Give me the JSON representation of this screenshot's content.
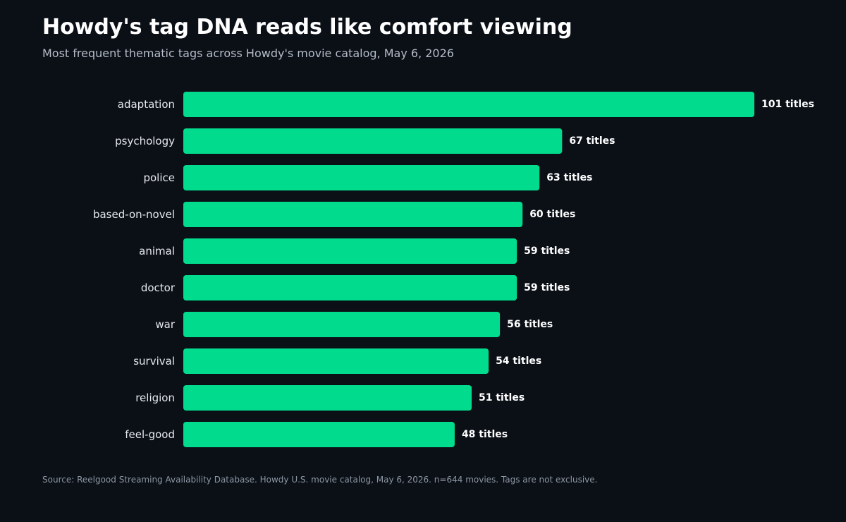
{
  "header": {
    "title": "Howdy's tag DNA reads like comfort viewing",
    "subtitle": "Most frequent thematic tags across Howdy's movie catalog, May 6, 2026"
  },
  "footer": {
    "source": "Source: Reelgood Streaming Availability Database. Howdy U.S. movie catalog, May 6, 2026. n=644 movies. Tags are not exclusive."
  },
  "colors": {
    "background": "#0b1017",
    "bar": "#00db8d",
    "category_label": "#e6e9ee",
    "value_label": "#ffffff",
    "subtitle": "#b4bcc8",
    "source": "#8d96a3"
  },
  "chart_data": {
    "type": "bar",
    "orientation": "horizontal",
    "title": "Howdy's tag DNA reads like comfort viewing",
    "subtitle": "Most frequent thematic tags across Howdy's movie catalog, May 6, 2026",
    "categories": [
      "adaptation",
      "psychology",
      "police",
      "based-on-novel",
      "animal",
      "doctor",
      "war",
      "survival",
      "religion",
      "feel-good"
    ],
    "values": [
      101,
      67,
      63,
      60,
      59,
      59,
      56,
      54,
      51,
      48
    ],
    "value_labels": [
      "101 titles",
      "67 titles",
      "63 titles",
      "60 titles",
      "59 titles",
      "59 titles",
      "56 titles",
      "54 titles",
      "51 titles",
      "48 titles"
    ],
    "xlim": [
      0,
      101
    ],
    "grid": false,
    "legend": "none"
  }
}
